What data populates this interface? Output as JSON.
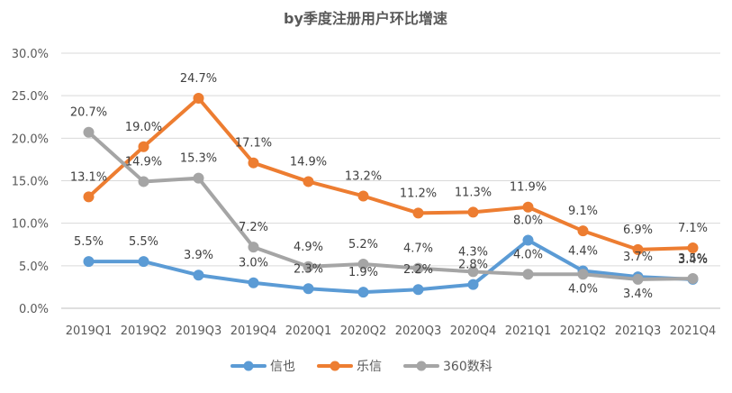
{
  "chart_data": {
    "type": "line",
    "title": "by季度注册用户环比增速",
    "xlabel": "",
    "ylabel": "",
    "ylim": [
      0,
      30
    ],
    "y_ticks": [
      "0.0%",
      "5.0%",
      "10.0%",
      "15.0%",
      "20.0%",
      "25.0%",
      "30.0%"
    ],
    "categories": [
      "2019Q1",
      "2019Q2",
      "2019Q3",
      "2019Q4",
      "2020Q1",
      "2020Q2",
      "2020Q3",
      "2020Q4",
      "2021Q1",
      "2021Q2",
      "2021Q3",
      "2021Q4"
    ],
    "grid": true,
    "legend": "bottom",
    "series": [
      {
        "name": "信也",
        "color": "#5b9bd5",
        "values": [
          5.5,
          5.5,
          3.9,
          3.0,
          2.3,
          1.9,
          2.2,
          2.8,
          8.0,
          4.4,
          3.7,
          3.4
        ],
        "labels": [
          "5.5%",
          "5.5%",
          "3.9%",
          "3.0%",
          "2.3%",
          "1.9%",
          "2.2%",
          "2.8%",
          "8.0%",
          "4.4%",
          "3.7%",
          "3.4%"
        ]
      },
      {
        "name": "乐信",
        "color": "#ed7d31",
        "values": [
          13.1,
          19.0,
          24.7,
          17.1,
          14.9,
          13.2,
          11.2,
          11.3,
          11.9,
          9.1,
          6.9,
          7.1
        ],
        "labels": [
          "13.1%",
          "19.0%",
          "24.7%",
          "17.1%",
          "14.9%",
          "13.2%",
          "11.2%",
          "11.3%",
          "11.9%",
          "9.1%",
          "6.9%",
          "7.1%"
        ]
      },
      {
        "name": "360数科",
        "color": "#a5a5a5",
        "values": [
          20.7,
          14.9,
          15.3,
          7.2,
          4.9,
          5.2,
          4.7,
          4.3,
          4.0,
          4.0,
          3.4,
          3.5
        ],
        "labels": [
          "20.7%",
          "14.9%",
          "15.3%",
          "7.2%",
          "4.9%",
          "5.2%",
          "4.7%",
          "4.3%",
          "4.0%",
          "4.0%",
          "3.4%",
          "3.5%"
        ]
      }
    ]
  }
}
